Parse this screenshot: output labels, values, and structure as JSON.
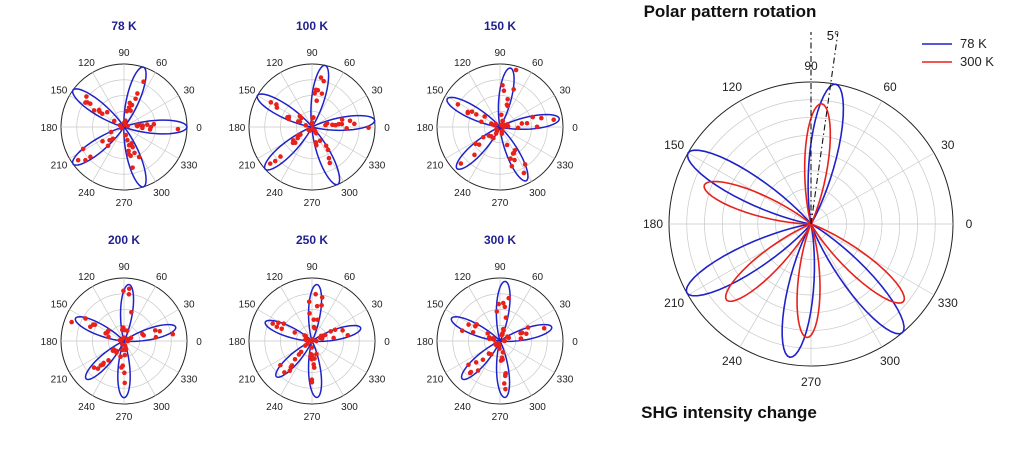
{
  "chart_data": [
    {
      "type": "polar",
      "title": "78 K",
      "angle_ticks": [
        "0",
        "30",
        "60",
        "90",
        "120",
        "150",
        "180",
        "210",
        "240",
        "270",
        "300",
        "330"
      ],
      "series": [
        {
          "kind": "fit",
          "color": "#1f22c8",
          "lobes": [
            [
              0,
              1.0
            ],
            [
              72,
              1.0
            ],
            [
              144,
              1.0
            ],
            [
              216,
              1.0
            ],
            [
              288,
              1.0
            ]
          ]
        },
        {
          "kind": "data",
          "color": "#e8211b"
        }
      ]
    },
    {
      "type": "polar",
      "title": "100 K",
      "angle_ticks": [
        "0",
        "30",
        "60",
        "90",
        "120",
        "150",
        "180",
        "210",
        "240",
        "270",
        "300",
        "330"
      ],
      "series": [
        {
          "kind": "fit",
          "color": "#1f22c8",
          "lobes": [
            [
              6,
              1.0
            ],
            [
              78,
              1.0
            ],
            [
              150,
              1.0
            ],
            [
              222,
              1.0
            ],
            [
              294,
              1.0
            ]
          ]
        },
        {
          "kind": "data",
          "color": "#e8211b"
        }
      ]
    },
    {
      "type": "polar",
      "title": "150 K",
      "angle_ticks": [
        "0",
        "30",
        "60",
        "90",
        "120",
        "150",
        "180",
        "210",
        "240",
        "270",
        "300",
        "330"
      ],
      "series": [
        {
          "kind": "fit",
          "color": "#1f22c8",
          "lobes": [
            [
              8,
              0.95
            ],
            [
              80,
              0.95
            ],
            [
              152,
              0.95
            ],
            [
              224,
              0.95
            ],
            [
              296,
              0.95
            ]
          ]
        },
        {
          "kind": "data",
          "color": "#e8211b"
        }
      ]
    },
    {
      "type": "polar",
      "title": "200 K",
      "angle_ticks": [
        "0",
        "30",
        "60",
        "90",
        "120",
        "150",
        "180",
        "210",
        "240",
        "270",
        "300",
        "330"
      ],
      "series": [
        {
          "kind": "fit",
          "color": "#1f22c8",
          "lobes": [
            [
              15,
              0.85
            ],
            [
              85,
              0.9
            ],
            [
              155,
              0.85
            ],
            [
              225,
              0.85
            ],
            [
              270,
              0.9
            ]
          ]
        },
        {
          "kind": "data",
          "color": "#e8211b"
        }
      ]
    },
    {
      "type": "polar",
      "title": "250 K",
      "angle_ticks": [
        "0",
        "30",
        "60",
        "90",
        "120",
        "150",
        "180",
        "210",
        "240",
        "270",
        "300",
        "330"
      ],
      "series": [
        {
          "kind": "fit",
          "color": "#1f22c8",
          "lobes": [
            [
              15,
              0.8
            ],
            [
              85,
              0.9
            ],
            [
              158,
              0.8
            ],
            [
              225,
              0.8
            ],
            [
              275,
              0.9
            ]
          ]
        },
        {
          "kind": "data",
          "color": "#e8211b"
        }
      ]
    },
    {
      "type": "polar",
      "title": "300 K",
      "angle_ticks": [
        "0",
        "30",
        "60",
        "90",
        "120",
        "150",
        "180",
        "210",
        "240",
        "270",
        "300",
        "330"
      ],
      "series": [
        {
          "kind": "fit",
          "color": "#1f22c8",
          "lobes": [
            [
              15,
              0.85
            ],
            [
              85,
              0.95
            ],
            [
              155,
              0.85
            ],
            [
              225,
              0.85
            ],
            [
              275,
              0.9
            ]
          ]
        },
        {
          "kind": "data",
          "color": "#e8211b"
        }
      ]
    },
    {
      "type": "polar",
      "title": "Polar pattern rotation",
      "angle_ticks": [
        "0",
        "30",
        "60",
        "90",
        "120",
        "150",
        "180",
        "210",
        "240",
        "270",
        "300",
        "330"
      ],
      "legend": "top-right",
      "series": [
        {
          "name": "78 K",
          "color": "#1f22c8",
          "lobes": [
            [
              80,
              1.0
            ],
            [
              150,
              1.0
            ],
            [
              209,
              1.0
            ],
            [
              261,
              0.95
            ],
            [
              310,
              1.0
            ]
          ]
        },
        {
          "name": "300 K",
          "color": "#e8211b",
          "lobes": [
            [
              85,
              0.85
            ],
            [
              160,
              0.8
            ],
            [
              222,
              0.8
            ],
            [
              268,
              0.8
            ],
            [
              320,
              0.85
            ]
          ]
        }
      ],
      "annotations": [
        "5°",
        "SHG intensity change"
      ]
    }
  ]
}
